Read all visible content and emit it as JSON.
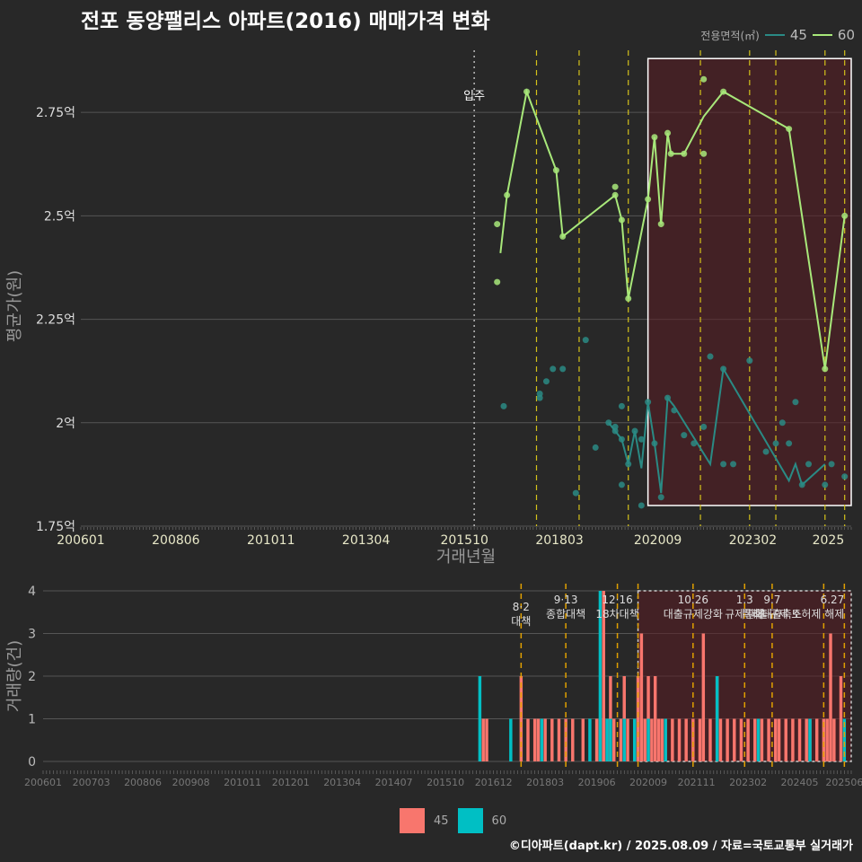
{
  "title": "전포 동양팰리스 아파트(2016) 매매가격 변화",
  "legend": {
    "title": "전용면적(㎡)",
    "items": [
      {
        "label": "45",
        "color": "#2a8a84"
      },
      {
        "label": "60",
        "color": "#a8e87a"
      }
    ]
  },
  "bottom_legend": [
    {
      "label": "45",
      "color": "#f8766d"
    },
    {
      "label": "60",
      "color": "#00bfc4"
    }
  ],
  "footer": "©디아파트(dapt.kr) / 2025.08.09 / 자료=국토교통부 실거래가",
  "chart_data": [
    {
      "type": "line",
      "title": "전포 동양팰리스 아파트(2016) 매매가격 변화",
      "xlabel": "거래년월",
      "ylabel": "평균가(원)",
      "xlim": [
        "2006-01",
        "2025-08"
      ],
      "ylim": [
        1.75,
        2.9
      ],
      "y_ticks": [
        1.75,
        2.0,
        2.25,
        2.5,
        2.75
      ],
      "y_tick_labels": [
        "1.75억",
        "2억",
        "2.25억",
        "2.5억",
        "2.75억"
      ],
      "x_tick_labels": [
        "200601",
        "200806",
        "201011",
        "201304",
        "201510",
        "201803",
        "202009",
        "202302",
        "2025"
      ],
      "annotations": [
        {
          "x": "2016-01",
          "label": "입주",
          "style": "dotted"
        }
      ],
      "policy_lines": [
        "2017-08",
        "2018-09",
        "2019-12",
        "2021-10",
        "2023-01",
        "2023-09",
        "2024-12",
        "2025-06"
      ],
      "highlight": {
        "x0": "2020-06",
        "x1": "2025-08",
        "y0": 1.8,
        "y1": 2.88
      },
      "series": [
        {
          "name": "60",
          "line": [
            [
              "2016-09",
              2.41
            ],
            [
              "2016-11",
              2.55
            ],
            [
              "2017-05",
              2.8
            ],
            [
              "2018-02",
              2.61
            ],
            [
              "2018-04",
              2.45
            ],
            [
              "2019-08",
              2.55
            ],
            [
              "2019-10",
              2.49
            ],
            [
              "2019-12",
              2.3
            ],
            [
              "2020-06",
              2.54
            ],
            [
              "2020-08",
              2.69
            ],
            [
              "2020-10",
              2.48
            ],
            [
              "2020-12",
              2.7
            ],
            [
              "2021-01",
              2.65
            ],
            [
              "2021-05",
              2.65
            ],
            [
              "2021-11",
              2.74
            ],
            [
              "2022-05",
              2.8
            ],
            [
              "2024-01",
              2.71
            ],
            [
              "2024-12",
              2.13
            ],
            [
              "2025-06",
              2.5
            ]
          ],
          "points": [
            [
              "2016-08",
              2.48
            ],
            [
              "2016-08",
              2.34
            ],
            [
              "2016-11",
              2.55
            ],
            [
              "2017-05",
              2.8
            ],
            [
              "2018-02",
              2.61
            ],
            [
              "2018-04",
              2.45
            ],
            [
              "2019-08",
              2.57
            ],
            [
              "2019-08",
              2.55
            ],
            [
              "2019-10",
              2.49
            ],
            [
              "2019-12",
              2.3
            ],
            [
              "2020-06",
              2.54
            ],
            [
              "2020-08",
              2.69
            ],
            [
              "2020-10",
              2.48
            ],
            [
              "2020-12",
              2.7
            ],
            [
              "2021-01",
              2.65
            ],
            [
              "2021-05",
              2.65
            ],
            [
              "2021-11",
              2.83
            ],
            [
              "2021-11",
              2.65
            ],
            [
              "2022-05",
              2.8
            ],
            [
              "2024-01",
              2.71
            ],
            [
              "2024-12",
              2.13
            ],
            [
              "2025-06",
              2.5
            ]
          ]
        },
        {
          "name": "45",
          "line": [
            [
              "2019-06",
              2.0
            ],
            [
              "2019-08",
              1.98
            ],
            [
              "2019-10",
              1.96
            ],
            [
              "2019-12",
              1.9
            ],
            [
              "2020-02",
              1.98
            ],
            [
              "2020-04",
              1.89
            ],
            [
              "2020-06",
              2.05
            ],
            [
              "2020-08",
              1.95
            ],
            [
              "2020-10",
              1.83
            ],
            [
              "2020-12",
              2.06
            ],
            [
              "2021-02",
              2.04
            ],
            [
              "2022-01",
              1.9
            ],
            [
              "2022-05",
              2.13
            ],
            [
              "2024-01",
              1.86
            ],
            [
              "2024-03",
              1.9
            ],
            [
              "2024-05",
              1.85
            ],
            [
              "2024-12",
              1.9
            ]
          ],
          "points": [
            [
              "2016-10",
              2.04
            ],
            [
              "2017-09",
              2.07
            ],
            [
              "2017-09",
              2.06
            ],
            [
              "2017-11",
              2.1
            ],
            [
              "2018-01",
              2.13
            ],
            [
              "2018-04",
              2.13
            ],
            [
              "2018-08",
              1.83
            ],
            [
              "2018-11",
              2.2
            ],
            [
              "2019-02",
              1.94
            ],
            [
              "2019-06",
              2.0
            ],
            [
              "2019-08",
              1.99
            ],
            [
              "2019-08",
              1.98
            ],
            [
              "2019-10",
              2.04
            ],
            [
              "2019-10",
              1.96
            ],
            [
              "2019-10",
              1.85
            ],
            [
              "2019-12",
              1.9
            ],
            [
              "2020-02",
              1.98
            ],
            [
              "2020-04",
              1.8
            ],
            [
              "2020-04",
              1.96
            ],
            [
              "2020-06",
              2.05
            ],
            [
              "2020-08",
              1.95
            ],
            [
              "2020-10",
              1.82
            ],
            [
              "2020-12",
              2.06
            ],
            [
              "2021-02",
              2.03
            ],
            [
              "2021-05",
              1.97
            ],
            [
              "2021-08",
              1.95
            ],
            [
              "2021-11",
              1.99
            ],
            [
              "2022-01",
              2.16
            ],
            [
              "2022-05",
              1.9
            ],
            [
              "2022-05",
              2.13
            ],
            [
              "2022-08",
              1.9
            ],
            [
              "2023-01",
              2.15
            ],
            [
              "2023-06",
              1.93
            ],
            [
              "2023-09",
              1.95
            ],
            [
              "2023-11",
              2.0
            ],
            [
              "2024-01",
              1.95
            ],
            [
              "2024-03",
              2.05
            ],
            [
              "2024-05",
              1.85
            ],
            [
              "2024-07",
              1.9
            ],
            [
              "2024-12",
              1.85
            ],
            [
              "2025-02",
              1.9
            ],
            [
              "2025-06",
              1.87
            ]
          ]
        }
      ]
    },
    {
      "type": "bar",
      "xlabel": "",
      "ylabel": "거래량(건)",
      "xlim": [
        "2006-01",
        "2025-08"
      ],
      "ylim": [
        0,
        4
      ],
      "y_ticks": [
        0,
        1,
        2,
        3,
        4
      ],
      "x_tick_labels": [
        "200601",
        "200703",
        "200806",
        "200908",
        "201011",
        "201201",
        "201304",
        "201407",
        "201510",
        "201612",
        "201803",
        "201906",
        "202009",
        "202111",
        "202302",
        "202405",
        "202506"
      ],
      "highlight": {
        "x0": "2020-06",
        "x1": "2025-08"
      },
      "policy_events": [
        {
          "x": "2017-08",
          "label": "8·2 대책"
        },
        {
          "x": "2018-09",
          "label": "9·13 종합대책"
        },
        {
          "x": "2019-12",
          "label": "12·16 18차대책"
        },
        {
          "x": "2020-06",
          "label": ""
        },
        {
          "x": "2021-10",
          "label": "10.26 대출규제강화"
        },
        {
          "x": "2023-01",
          "label": "1.3 규제완화"
        },
        {
          "x": "2023-09",
          "label": "9.7 특례대출축소"
        },
        {
          "x": "2024-12",
          "label": ""
        },
        {
          "x": "2025-06",
          "label": "6.27 대출규제 토허제 해제"
        }
      ],
      "series": [
        {
          "name": "45",
          "points": [
            [
              "2016-09",
              1
            ],
            [
              "2016-10",
              1
            ],
            [
              "2017-08",
              2
            ],
            [
              "2017-10",
              1
            ],
            [
              "2017-12",
              1
            ],
            [
              "2018-01",
              1
            ],
            [
              "2018-03",
              1
            ],
            [
              "2018-05",
              1
            ],
            [
              "2018-07",
              1
            ],
            [
              "2018-09",
              1
            ],
            [
              "2018-11",
              1
            ],
            [
              "2019-02",
              1
            ],
            [
              "2019-06",
              1
            ],
            [
              "2019-07",
              1
            ],
            [
              "2019-08",
              4
            ],
            [
              "2019-09",
              1
            ],
            [
              "2019-10",
              2
            ],
            [
              "2019-11",
              1
            ],
            [
              "2020-01",
              1
            ],
            [
              "2020-02",
              2
            ],
            [
              "2020-03",
              1
            ],
            [
              "2020-05",
              1
            ],
            [
              "2020-06",
              2
            ],
            [
              "2020-07",
              3
            ],
            [
              "2020-08",
              1
            ],
            [
              "2020-09",
              2
            ],
            [
              "2020-10",
              1
            ],
            [
              "2020-11",
              2
            ],
            [
              "2020-12",
              1
            ],
            [
              "2021-01",
              1
            ],
            [
              "2021-02",
              1
            ],
            [
              "2021-04",
              1
            ],
            [
              "2021-06",
              1
            ],
            [
              "2021-08",
              1
            ],
            [
              "2021-10",
              1
            ],
            [
              "2021-12",
              1
            ],
            [
              "2022-01",
              3
            ],
            [
              "2022-03",
              1
            ],
            [
              "2022-05",
              2
            ],
            [
              "2022-06",
              1
            ],
            [
              "2022-08",
              1
            ],
            [
              "2022-10",
              1
            ],
            [
              "2022-12",
              1
            ],
            [
              "2023-02",
              1
            ],
            [
              "2023-04",
              1
            ],
            [
              "2023-06",
              1
            ],
            [
              "2023-08",
              1
            ],
            [
              "2023-10",
              1
            ],
            [
              "2023-11",
              1
            ],
            [
              "2024-01",
              1
            ],
            [
              "2024-03",
              1
            ],
            [
              "2024-05",
              1
            ],
            [
              "2024-07",
              1
            ],
            [
              "2024-08",
              1
            ],
            [
              "2024-10",
              1
            ],
            [
              "2024-12",
              1
            ],
            [
              "2025-01",
              1
            ],
            [
              "2025-02",
              3
            ],
            [
              "2025-03",
              1
            ],
            [
              "2025-05",
              2
            ]
          ]
        },
        {
          "name": "60",
          "points": [
            [
              "2016-08",
              2
            ],
            [
              "2017-05",
              1
            ],
            [
              "2018-02",
              1
            ],
            [
              "2019-04",
              1
            ],
            [
              "2019-07",
              4
            ],
            [
              "2019-09",
              1
            ],
            [
              "2019-10",
              1
            ],
            [
              "2020-02",
              1
            ],
            [
              "2020-05",
              1
            ],
            [
              "2020-09",
              1
            ],
            [
              "2021-02",
              1
            ],
            [
              "2022-05",
              2
            ],
            [
              "2023-05",
              1
            ],
            [
              "2024-08",
              1
            ],
            [
              "2025-06",
              1
            ]
          ]
        }
      ]
    }
  ]
}
